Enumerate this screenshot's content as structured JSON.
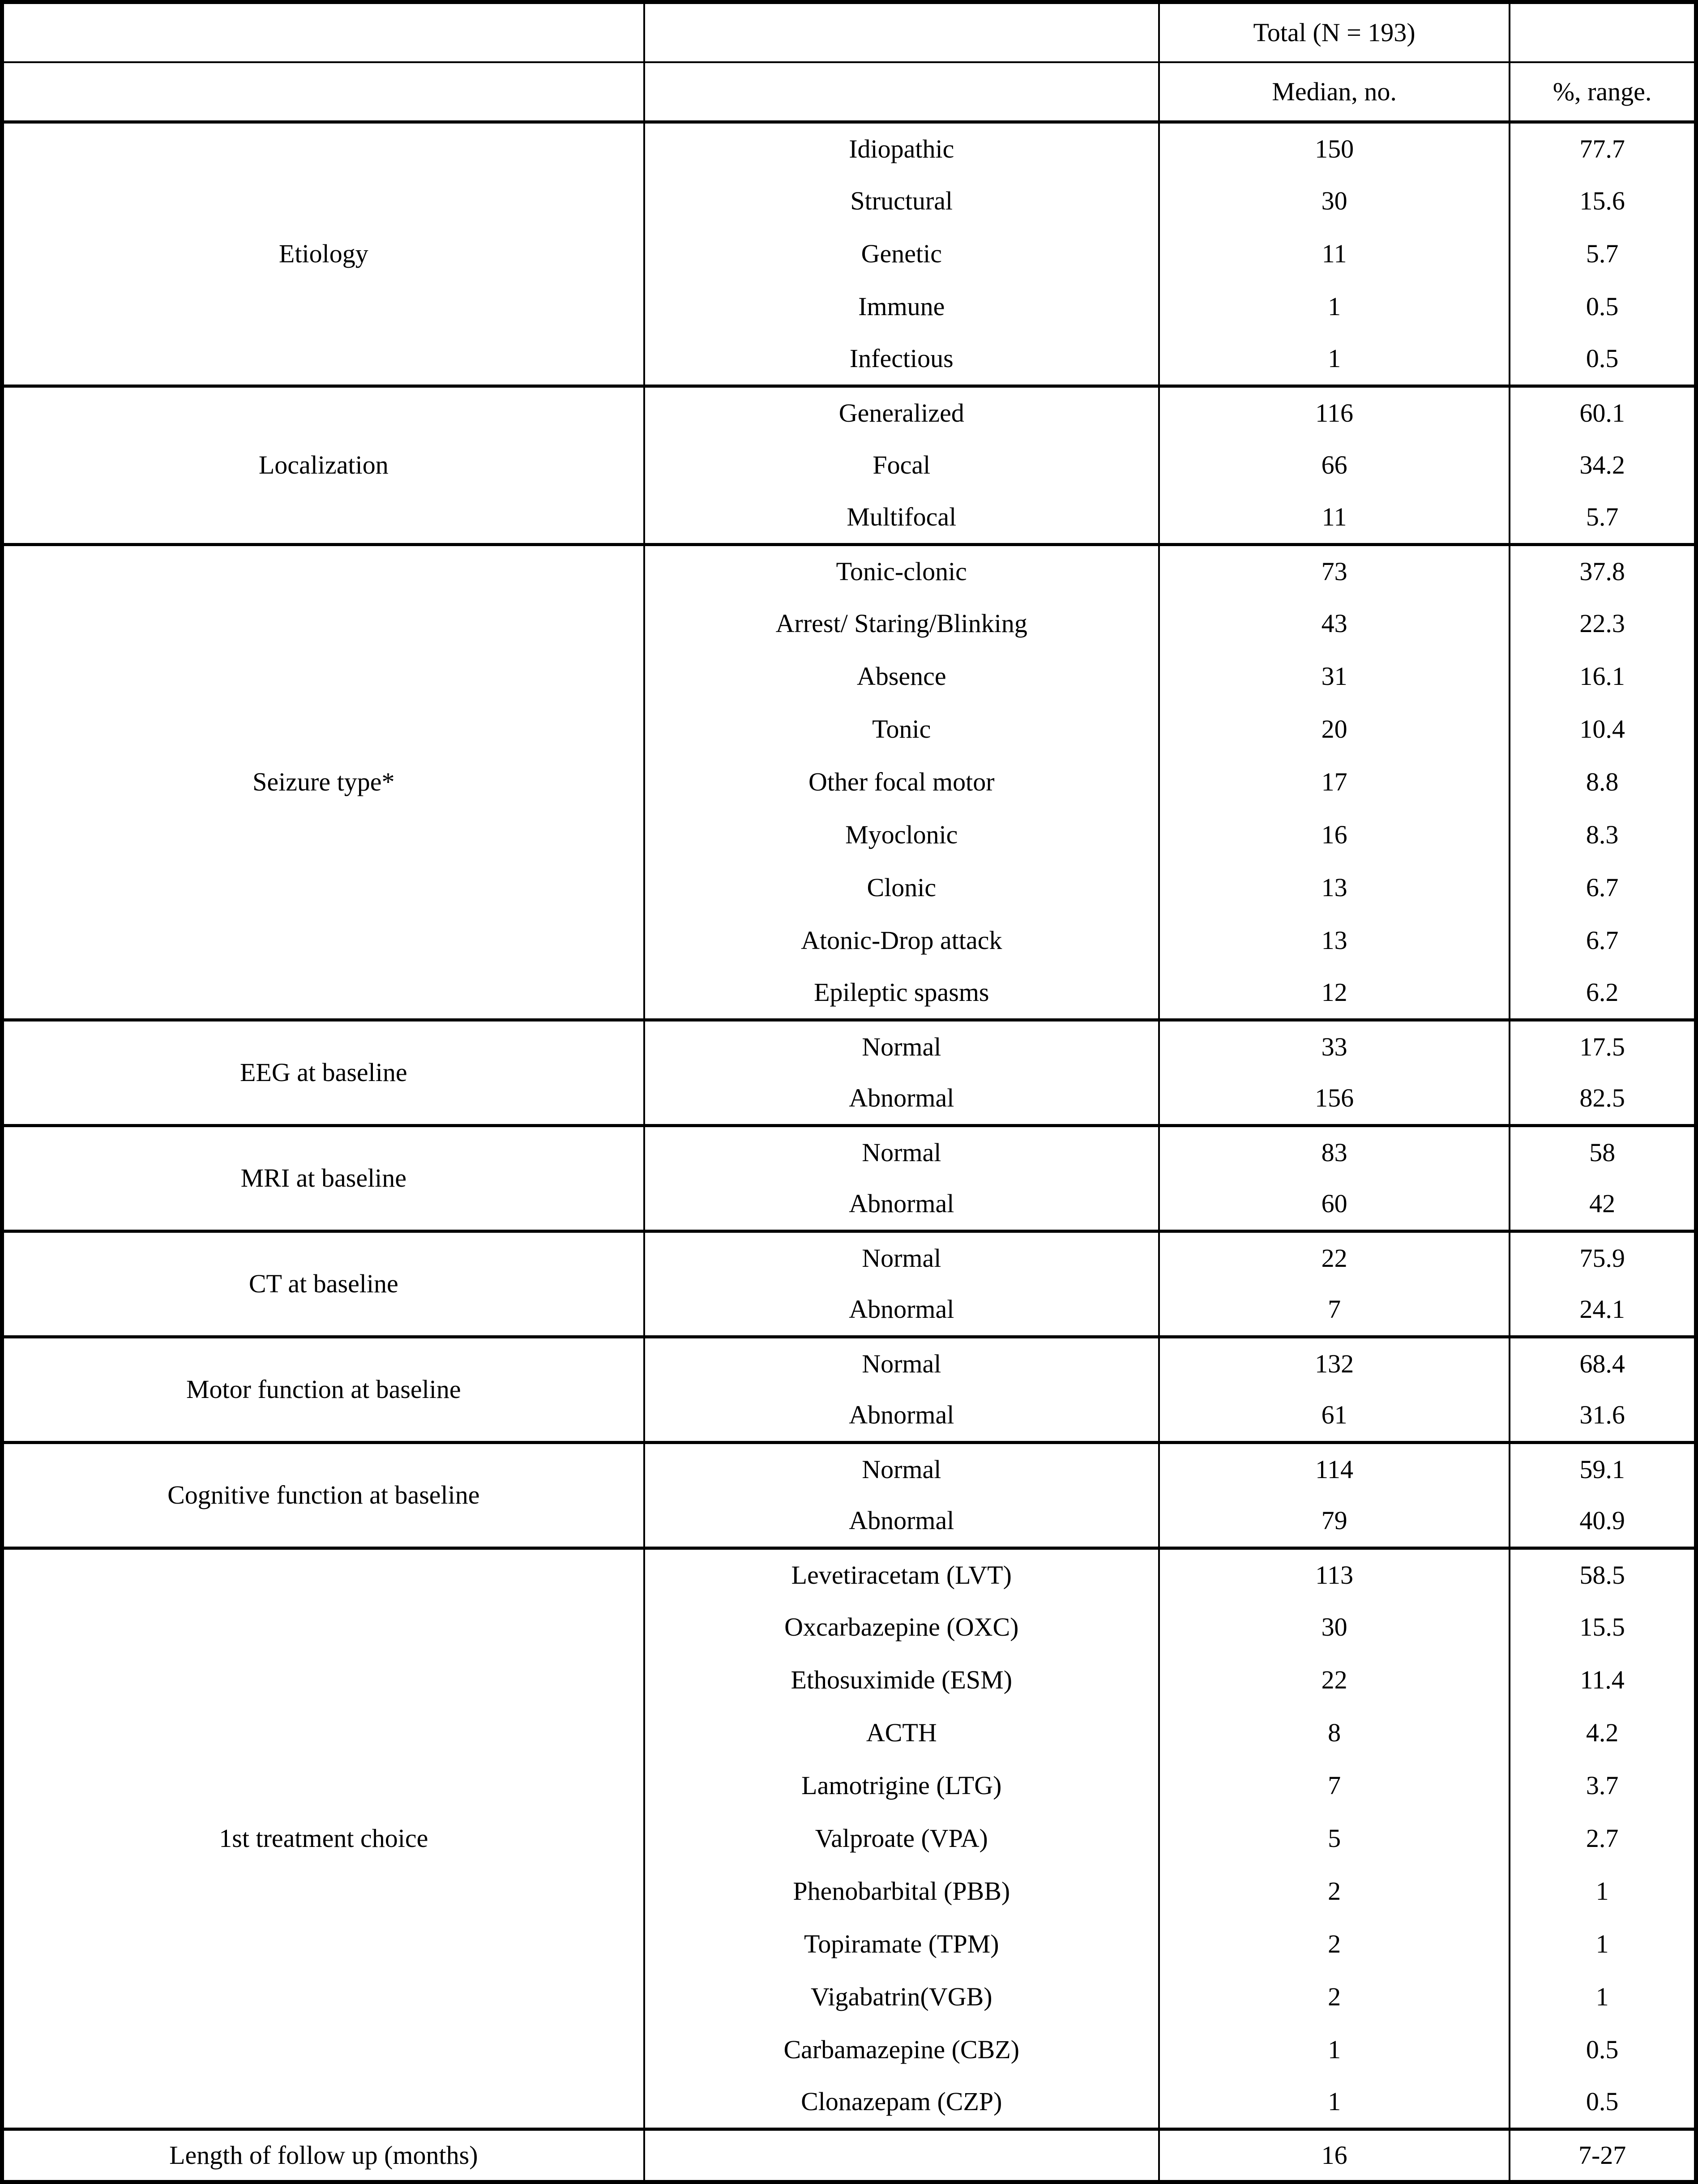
{
  "colors": {
    "background": "#ffffff",
    "text": "#000000",
    "border": "#000000"
  },
  "table": {
    "header": {
      "total_label": "Total (N = 193)",
      "median_label": "Median, no.",
      "range_label": "%, range."
    },
    "sections": [
      {
        "category": "Etiology",
        "rows": [
          {
            "item": "Idiopathic",
            "median": "150",
            "percent": "77.7"
          },
          {
            "item": "Structural",
            "median": "30",
            "percent": "15.6"
          },
          {
            "item": "Genetic",
            "median": "11",
            "percent": "5.7"
          },
          {
            "item": "Immune",
            "median": "1",
            "percent": "0.5"
          },
          {
            "item": "Infectious",
            "median": "1",
            "percent": "0.5"
          }
        ]
      },
      {
        "category": "Localization",
        "rows": [
          {
            "item": "Generalized",
            "median": "116",
            "percent": "60.1"
          },
          {
            "item": "Focal",
            "median": "66",
            "percent": "34.2"
          },
          {
            "item": "Multifocal",
            "median": "11",
            "percent": "5.7"
          }
        ]
      },
      {
        "category": "Seizure type*",
        "rows": [
          {
            "item": "Tonic-clonic",
            "median": "73",
            "percent": "37.8"
          },
          {
            "item": "Arrest/ Staring/Blinking",
            "median": "43",
            "percent": "22.3"
          },
          {
            "item": "Absence",
            "median": "31",
            "percent": "16.1"
          },
          {
            "item": "Tonic",
            "median": "20",
            "percent": "10.4"
          },
          {
            "item": "Other focal motor",
            "median": "17",
            "percent": "8.8"
          },
          {
            "item": "Myoclonic",
            "median": "16",
            "percent": "8.3"
          },
          {
            "item": "Clonic",
            "median": "13",
            "percent": "6.7"
          },
          {
            "item": "Atonic-Drop attack",
            "median": "13",
            "percent": "6.7"
          },
          {
            "item": "Epileptic spasms",
            "median": "12",
            "percent": "6.2"
          }
        ]
      },
      {
        "category": "EEG at baseline",
        "rows": [
          {
            "item": "Normal",
            "median": "33",
            "percent": "17.5"
          },
          {
            "item": "Abnormal",
            "median": "156",
            "percent": "82.5"
          }
        ]
      },
      {
        "category": "MRI at baseline",
        "rows": [
          {
            "item": "Normal",
            "median": "83",
            "percent": "58"
          },
          {
            "item": "Abnormal",
            "median": "60",
            "percent": "42"
          }
        ]
      },
      {
        "category": "CT at baseline",
        "rows": [
          {
            "item": "Normal",
            "median": "22",
            "percent": "75.9"
          },
          {
            "item": "Abnormal",
            "median": "7",
            "percent": "24.1"
          }
        ]
      },
      {
        "category": "Motor function at baseline",
        "rows": [
          {
            "item": "Normal",
            "median": "132",
            "percent": "68.4"
          },
          {
            "item": "Abnormal",
            "median": "61",
            "percent": "31.6"
          }
        ]
      },
      {
        "category": "Cognitive function at baseline",
        "rows": [
          {
            "item": "Normal",
            "median": "114",
            "percent": "59.1"
          },
          {
            "item": "Abnormal",
            "median": "79",
            "percent": "40.9"
          }
        ]
      },
      {
        "category": "1st treatment choice",
        "rows": [
          {
            "item": "Levetiracetam (LVT)",
            "median": "113",
            "percent": "58.5"
          },
          {
            "item": "Oxcarbazepine (OXC)",
            "median": "30",
            "percent": "15.5"
          },
          {
            "item": "Ethosuximide (ESM)",
            "median": "22",
            "percent": "11.4"
          },
          {
            "item": "ACTH",
            "median": "8",
            "percent": "4.2"
          },
          {
            "item": "Lamotrigine (LTG)",
            "median": "7",
            "percent": "3.7"
          },
          {
            "item": "Valproate (VPA)",
            "median": "5",
            "percent": "2.7"
          },
          {
            "item": "Phenobarbital (PBB)",
            "median": "2",
            "percent": "1"
          },
          {
            "item": "Topiramate (TPM)",
            "median": "2",
            "percent": "1"
          },
          {
            "item": "Vigabatrin(VGB)",
            "median": "2",
            "percent": "1"
          },
          {
            "item": "Carbamazepine (CBZ)",
            "median": "1",
            "percent": "0.5"
          },
          {
            "item": "Clonazepam (CZP)",
            "median": "1",
            "percent": "0.5"
          }
        ]
      },
      {
        "category": "Length of follow up (months)",
        "rows": [
          {
            "item": "",
            "median": "16",
            "percent": "7-27"
          }
        ]
      }
    ]
  }
}
